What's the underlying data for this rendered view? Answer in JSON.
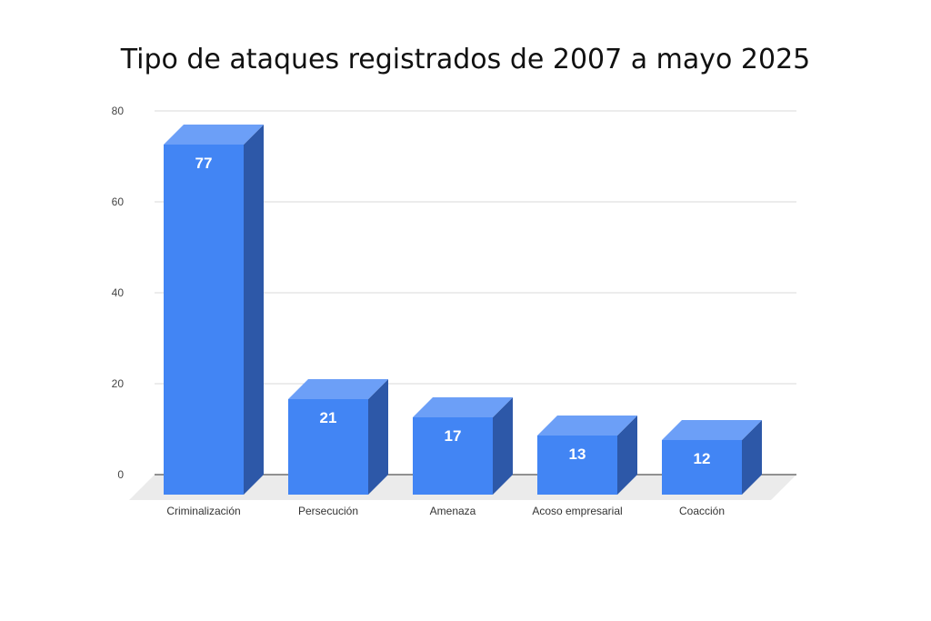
{
  "chart_data": {
    "type": "bar",
    "title": "Tipo de ataques registrados de 2007 a mayo 2025",
    "categories": [
      "Criminalización",
      "Persecución",
      "Amenaza",
      "Acoso empresarial",
      "Coacción"
    ],
    "values": [
      77,
      21,
      17,
      13,
      12
    ],
    "data_labels": [
      "77",
      "21",
      "17",
      "13",
      "12"
    ],
    "ylim": [
      0,
      80
    ],
    "yticks": [
      0,
      20,
      40,
      60,
      80
    ],
    "xlabel": "",
    "ylabel": "",
    "grid": true,
    "style": "3d",
    "colors": {
      "front": "#4285f4",
      "top": "#6c9ff7",
      "side": "#2d58a8",
      "floor": "#ebebeb",
      "grid": "#d9d9d9",
      "axis": "#555555"
    }
  }
}
